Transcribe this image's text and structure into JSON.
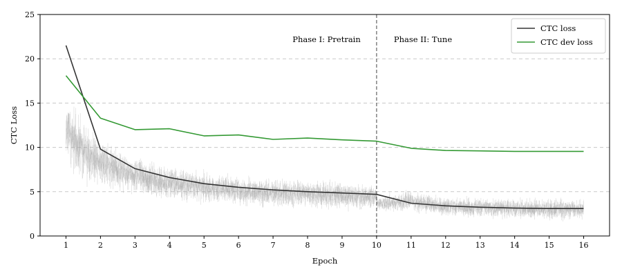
{
  "chart_data": {
    "type": "line",
    "xlabel": "Epoch",
    "ylabel": "CTC Loss",
    "xlim": [
      0.25,
      16.75
    ],
    "ylim": [
      0,
      25
    ],
    "x_ticks": [
      1,
      2,
      3,
      4,
      5,
      6,
      7,
      8,
      9,
      10,
      11,
      12,
      13,
      14,
      15,
      16
    ],
    "y_ticks": [
      0,
      5,
      10,
      15,
      20,
      25
    ],
    "grid": "horizontal dashed",
    "legend_position": "top-right",
    "x": [
      1,
      2,
      3,
      4,
      5,
      6,
      7,
      8,
      9,
      10,
      11,
      12,
      13,
      14,
      15,
      16
    ],
    "series": [
      {
        "name": "CTC loss",
        "color": "#333333",
        "values": [
          21.5,
          9.8,
          7.6,
          6.6,
          5.9,
          5.5,
          5.2,
          5.0,
          4.85,
          4.7,
          3.7,
          3.4,
          3.25,
          3.15,
          3.1,
          3.1
        ]
      },
      {
        "name": "CTC dev loss",
        "color": "#339933",
        "values": [
          18.1,
          13.3,
          12.0,
          12.1,
          11.3,
          11.4,
          10.9,
          11.05,
          10.85,
          10.7,
          9.9,
          9.65,
          9.6,
          9.55,
          9.55,
          9.55
        ]
      }
    ],
    "raw_batch_loss": {
      "color": "#999999",
      "x_range": [
        1,
        16
      ],
      "envelope": [
        {
          "x": 1.0,
          "mean": 12.0,
          "spread": 3.0
        },
        {
          "x": 1.5,
          "mean": 9.5,
          "spread": 2.5
        },
        {
          "x": 2.0,
          "mean": 8.3,
          "spread": 2.0
        },
        {
          "x": 3.0,
          "mean": 6.9,
          "spread": 1.6
        },
        {
          "x": 4.0,
          "mean": 6.0,
          "spread": 1.5
        },
        {
          "x": 5.0,
          "mean": 5.5,
          "spread": 1.4
        },
        {
          "x": 6.0,
          "mean": 5.1,
          "spread": 1.3
        },
        {
          "x": 7.0,
          "mean": 4.9,
          "spread": 1.3
        },
        {
          "x": 8.0,
          "mean": 4.7,
          "spread": 1.2
        },
        {
          "x": 9.0,
          "mean": 4.55,
          "spread": 1.2
        },
        {
          "x": 10.0,
          "mean": 4.4,
          "spread": 1.1
        },
        {
          "x": 10.01,
          "mean": 3.7,
          "spread": 0.6
        },
        {
          "x": 11.0,
          "mean": 3.9,
          "spread": 0.9
        },
        {
          "x": 12.0,
          "mean": 3.3,
          "spread": 0.9
        },
        {
          "x": 13.0,
          "mean": 3.2,
          "spread": 0.9
        },
        {
          "x": 14.0,
          "mean": 3.1,
          "spread": 0.9
        },
        {
          "x": 15.0,
          "mean": 3.05,
          "spread": 0.9
        },
        {
          "x": 16.0,
          "mean": 3.0,
          "spread": 0.9
        }
      ]
    },
    "vline": {
      "x": 10,
      "color": "#555555",
      "style": "dashed"
    },
    "annotations": [
      {
        "text": "Phase I: Pretrain",
        "x": 8.55,
        "y": 22.2,
        "anchor": "middle"
      },
      {
        "text": "Phase II: Tune",
        "x": 10.5,
        "y": 22.2,
        "anchor": "start"
      }
    ]
  }
}
